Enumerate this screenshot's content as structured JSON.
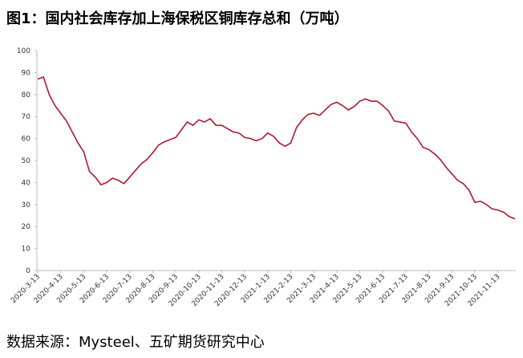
{
  "chart_data": {
    "type": "line",
    "title": "图1：国内社会库存加上海保税区铜库存总和（万吨）",
    "source": "数据来源：Mysteel、五矿期货研究中心",
    "categories": [
      "2020-3-13",
      null,
      null,
      null,
      "2020-4-13",
      null,
      null,
      null,
      "2020-5-13",
      null,
      null,
      null,
      "2020-6-13",
      null,
      null,
      null,
      "2020-7-13",
      null,
      null,
      null,
      "2020-8-13",
      null,
      null,
      null,
      "2020-9-13",
      null,
      null,
      null,
      "2020-10-13",
      null,
      null,
      null,
      "2020-11-13",
      null,
      null,
      null,
      "2020-12-13",
      null,
      null,
      null,
      "2021-1-13",
      null,
      null,
      null,
      "2021-2-13",
      null,
      null,
      null,
      "2021-3-13",
      null,
      null,
      null,
      "2021-4-13",
      null,
      null,
      null,
      "2021-5-13",
      null,
      null,
      null,
      "2021-6-13",
      null,
      null,
      null,
      "2021-7-13",
      null,
      null,
      null,
      "2021-8-13",
      null,
      null,
      null,
      "2021-9-13",
      null,
      null,
      null,
      "2021-10-13",
      null,
      null,
      null,
      "2021-11-13",
      null,
      null,
      null
    ],
    "series": [
      {
        "name": "库存总和",
        "color": "#b0182c",
        "values": [
          87,
          88,
          80,
          75,
          71.5,
          68,
          63,
          58,
          54,
          45,
          42.5,
          39,
          40,
          42,
          41,
          39.5,
          42.5,
          45.5,
          48.5,
          50.5,
          53.5,
          57,
          58.5,
          59.5,
          60.5,
          64,
          67.5,
          66,
          68.5,
          67.5,
          69,
          66,
          66,
          64.5,
          63,
          62.5,
          60.5,
          60,
          59,
          60,
          62.5,
          61,
          58,
          56.5,
          58,
          65,
          68.5,
          71,
          71.5,
          70.5,
          73,
          75.5,
          76.5,
          75,
          73,
          74.5,
          77,
          78,
          77,
          77,
          75,
          72.5,
          68,
          67.5,
          67,
          63,
          60,
          56,
          55,
          53,
          50.5,
          47,
          44,
          41,
          39.5,
          36.5,
          31,
          31.5,
          30,
          28,
          27.5,
          26.5,
          24.5,
          23.5
        ]
      }
    ],
    "ylim": [
      0,
      100
    ],
    "yticks": [
      0,
      10,
      20,
      30,
      40,
      50,
      60,
      70,
      80,
      90,
      100
    ],
    "grid": false
  }
}
